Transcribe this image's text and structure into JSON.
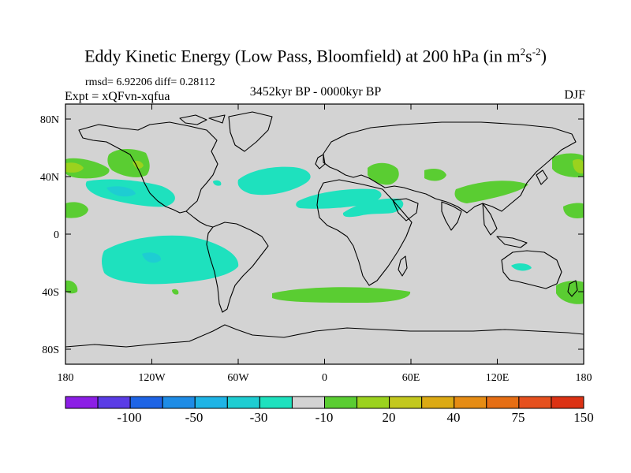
{
  "title": {
    "main": "Eddy Kinetic Energy (Low Pass, Bloomfield) at 200 hPa (in m",
    "sup1": "2",
    "mid": "s",
    "sup2": "-2",
    "close": ")"
  },
  "stats": "rmsd= 6.92206 diff= 0.28112",
  "expt": "Expt = xQFvn-xqfua",
  "period": "3452kyr BP - 0000kyr BP",
  "season": "DJF",
  "map": {
    "lon_ticks": [
      "180",
      "120W",
      "60W",
      "0",
      "60E",
      "120E",
      "180"
    ],
    "lat_ticks": [
      "80N",
      "40N",
      "0",
      "40S",
      "80S"
    ],
    "ocean_color": "#d3d3d3"
  },
  "colorbar": {
    "colors": [
      "#8c1ee6",
      "#5a3ce6",
      "#1e64e6",
      "#1e8ce6",
      "#1eb4e6",
      "#1ecdd2",
      "#1ee1be",
      "#d3d3d3",
      "#5acd32",
      "#9bd21e",
      "#c3c81e",
      "#dcaa14",
      "#e68c14",
      "#e66e14",
      "#e6501e",
      "#dc3214"
    ],
    "labels": [
      "-100",
      "-50",
      "-30",
      "-10",
      "20",
      "40",
      "75",
      "150"
    ]
  }
}
